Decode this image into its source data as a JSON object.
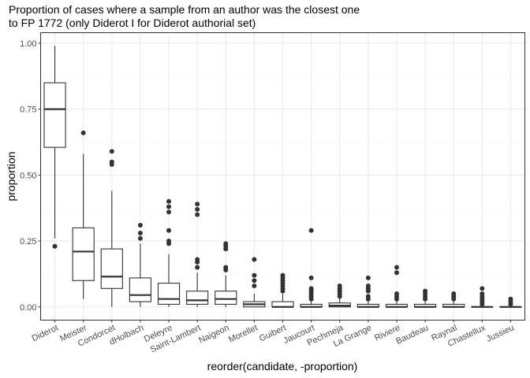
{
  "chart_data": {
    "type": "boxplot",
    "title": "Proportion of cases where a sample from an author was the closest one",
    "subtitle": "to FP 1772 (only Diderot I for Diderot authorial set)",
    "xlabel": "reorder(candidate, -proportion)",
    "ylabel": "proportion",
    "ylim": [
      -0.05,
      1.04
    ],
    "yticks": [
      "0.00",
      "0.25",
      "0.50",
      "0.75",
      "1.00"
    ],
    "ytick_values": [
      0,
      0.25,
      0.5,
      0.75,
      1.0
    ],
    "grid": true,
    "categories": [
      "Diderot",
      "Meister",
      "Condorcet",
      "dHolbach",
      "Deleyre",
      "Saint-Lambert",
      "Naigeon",
      "Morellet",
      "Guibert",
      "Jaucourt",
      "Pechmeja",
      "La Grange",
      "Riviere",
      "Baudeau",
      "Raynal",
      "Chastellux",
      "Jussieu"
    ],
    "boxes": [
      {
        "min": 0.26,
        "q1": 0.605,
        "median": 0.75,
        "q3": 0.85,
        "max": 0.99,
        "outliers": [
          0.23
        ]
      },
      {
        "min": 0.03,
        "q1": 0.1,
        "median": 0.21,
        "q3": 0.3,
        "max": 0.58,
        "outliers": [
          0.66
        ]
      },
      {
        "min": 0.0,
        "q1": 0.07,
        "median": 0.115,
        "q3": 0.22,
        "max": 0.44,
        "outliers": [
          0.54,
          0.55,
          0.59
        ]
      },
      {
        "min": 0.0,
        "q1": 0.02,
        "median": 0.045,
        "q3": 0.11,
        "max": 0.24,
        "outliers": [
          0.26,
          0.28,
          0.31
        ]
      },
      {
        "min": 0.0,
        "q1": 0.01,
        "median": 0.03,
        "q3": 0.09,
        "max": 0.2,
        "outliers": [
          0.24,
          0.25,
          0.29,
          0.36,
          0.38,
          0.4
        ]
      },
      {
        "min": 0.0,
        "q1": 0.01,
        "median": 0.025,
        "q3": 0.06,
        "max": 0.13,
        "outliers": [
          0.15,
          0.17,
          0.18,
          0.35,
          0.37,
          0.39
        ]
      },
      {
        "min": 0.0,
        "q1": 0.01,
        "median": 0.03,
        "q3": 0.06,
        "max": 0.12,
        "outliers": [
          0.14,
          0.15,
          0.22,
          0.23,
          0.24
        ]
      },
      {
        "min": 0.0,
        "q1": 0.0,
        "median": 0.01,
        "q3": 0.02,
        "max": 0.05,
        "outliers": [
          0.08,
          0.1,
          0.12,
          0.18
        ]
      },
      {
        "min": 0.0,
        "q1": 0.0,
        "median": 0.0,
        "q3": 0.02,
        "max": 0.05,
        "outliers": [
          0.06,
          0.07,
          0.08,
          0.09,
          0.1,
          0.11,
          0.12
        ]
      },
      {
        "min": 0.0,
        "q1": 0.0,
        "median": 0.0,
        "q3": 0.01,
        "max": 0.025,
        "outliers": [
          0.03,
          0.04,
          0.05,
          0.06,
          0.07,
          0.11,
          0.29
        ]
      },
      {
        "min": 0.0,
        "q1": 0.0,
        "median": 0.005,
        "q3": 0.015,
        "max": 0.035,
        "outliers": [
          0.04,
          0.05,
          0.06,
          0.07,
          0.08
        ]
      },
      {
        "min": 0.0,
        "q1": 0.0,
        "median": 0.0,
        "q3": 0.01,
        "max": 0.025,
        "outliers": [
          0.03,
          0.04,
          0.06,
          0.07,
          0.08,
          0.11
        ]
      },
      {
        "min": 0.0,
        "q1": 0.0,
        "median": 0.0,
        "q3": 0.01,
        "max": 0.025,
        "outliers": [
          0.03,
          0.04,
          0.05,
          0.13,
          0.15
        ]
      },
      {
        "min": 0.0,
        "q1": 0.0,
        "median": 0.0,
        "q3": 0.01,
        "max": 0.025,
        "outliers": [
          0.03,
          0.04,
          0.05,
          0.06
        ]
      },
      {
        "min": 0.0,
        "q1": 0.0,
        "median": 0.0,
        "q3": 0.01,
        "max": 0.02,
        "outliers": [
          0.03,
          0.04,
          0.05
        ]
      },
      {
        "min": 0.0,
        "q1": 0.0,
        "median": 0.0,
        "q3": 0.0,
        "max": 0.0,
        "outliers": [
          0.01,
          0.02,
          0.03,
          0.04,
          0.05,
          0.07
        ]
      },
      {
        "min": 0.0,
        "q1": 0.0,
        "median": 0.0,
        "q3": 0.0,
        "max": 0.0,
        "outliers": [
          0.01,
          0.02,
          0.03
        ]
      }
    ],
    "colors": {
      "panel_border": "#333333",
      "grid_major": "#ebebeb",
      "grid_minor": "#f5f5f5",
      "box_line": "#333333",
      "box_fill": "#ffffff",
      "outlier": "#333333"
    }
  }
}
